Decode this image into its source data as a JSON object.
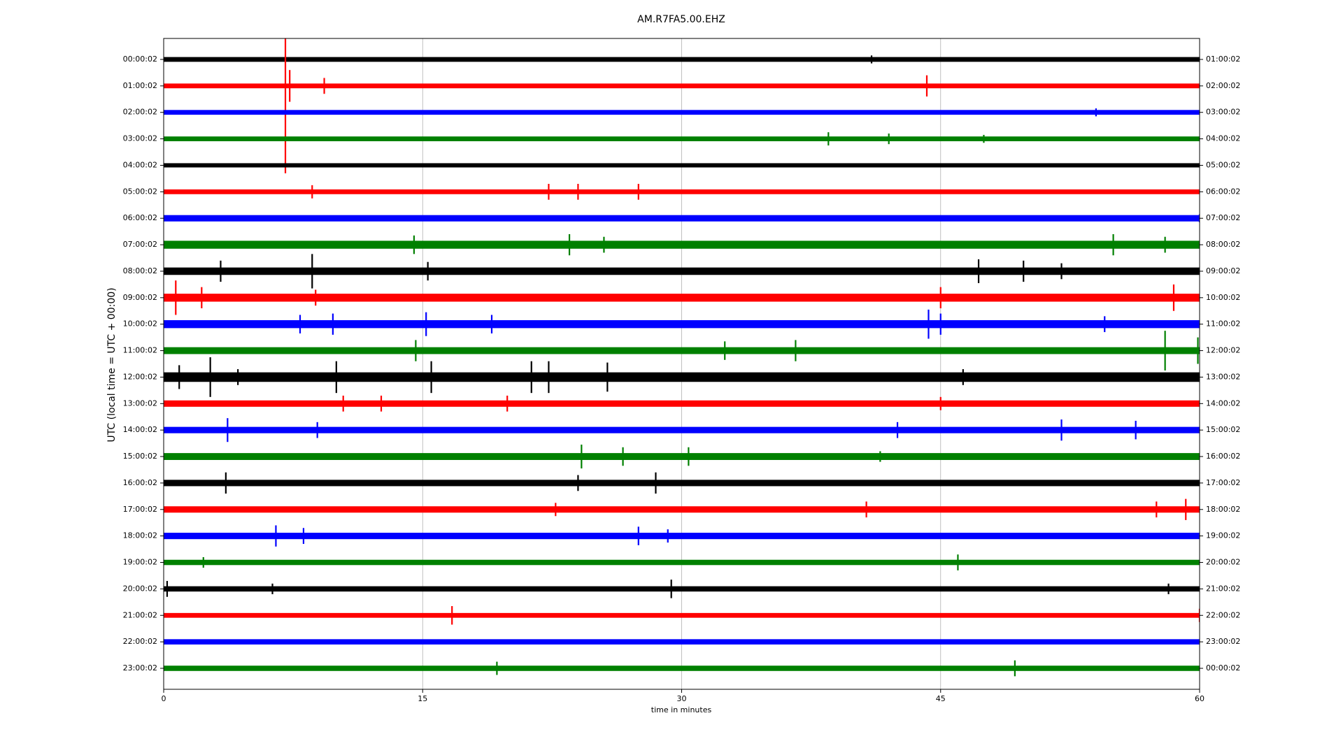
{
  "chart_data": {
    "type": "dayplot",
    "title": "AM.R7FA5.00.EHZ",
    "x_label": "time in minutes",
    "y_label": "UTC (local time = UTC + 00:00)",
    "xlim": [
      0,
      60
    ],
    "xticks": [
      0,
      15,
      30,
      45,
      60
    ],
    "grid": true,
    "rows": [
      {
        "label": "00:00:02",
        "right_label": "01:00:02",
        "color": "#000000",
        "noise": 0.09,
        "events": {
          "x": [
            41
          ],
          "values": [
            0.15
          ]
        }
      },
      {
        "label": "01:00:02",
        "right_label": "02:00:02",
        "color": "#ff0000",
        "noise": 0.09,
        "events": {
          "x": [
            7.05,
            7.3,
            9.3,
            44.2
          ],
          "values": [
            3.3,
            0.6,
            0.3,
            0.4
          ]
        }
      },
      {
        "label": "02:00:02",
        "right_label": "03:00:02",
        "color": "#0000ff",
        "noise": 0.09,
        "events": {
          "x": [
            54
          ],
          "values": [
            0.15
          ]
        }
      },
      {
        "label": "03:00:02",
        "right_label": "04:00:02",
        "color": "#008000",
        "noise": 0.09,
        "events": {
          "x": [
            38.5,
            42,
            47.5
          ],
          "values": [
            0.25,
            0.2,
            0.15
          ]
        }
      },
      {
        "label": "04:00:02",
        "right_label": "05:00:02",
        "color": "#000000",
        "noise": 0.08,
        "events": {
          "x": [],
          "values": []
        }
      },
      {
        "label": "05:00:02",
        "right_label": "06:00:02",
        "color": "#ff0000",
        "noise": 0.09,
        "events": {
          "x": [
            8.6,
            22.3,
            24,
            27.5
          ],
          "values": [
            0.25,
            0.3,
            0.3,
            0.3
          ]
        }
      },
      {
        "label": "06:00:02",
        "right_label": "07:00:02",
        "color": "#0000ff",
        "noise": 0.12,
        "events": {
          "x": [
            60
          ],
          "values": [
            0.15
          ]
        }
      },
      {
        "label": "07:00:02",
        "right_label": "08:00:02",
        "color": "#008000",
        "noise": 0.15,
        "events": {
          "x": [
            14.5,
            23.5,
            25.5,
            55,
            58
          ],
          "values": [
            0.35,
            0.4,
            0.3,
            0.4,
            0.3
          ]
        }
      },
      {
        "label": "08:00:02",
        "right_label": "09:00:02",
        "color": "#000000",
        "noise": 0.14,
        "events": {
          "x": [
            3.3,
            8.6,
            15.3,
            47.2,
            49.8,
            52
          ],
          "values": [
            0.4,
            0.65,
            0.35,
            0.45,
            0.4,
            0.3
          ]
        }
      },
      {
        "label": "09:00:02",
        "right_label": "10:00:02",
        "color": "#ff0000",
        "noise": 0.15,
        "events": {
          "x": [
            0.7,
            2.2,
            8.8,
            45,
            58.5
          ],
          "values": [
            0.65,
            0.4,
            0.3,
            0.4,
            0.5
          ]
        }
      },
      {
        "label": "10:00:02",
        "right_label": "11:00:02",
        "color": "#0000ff",
        "noise": 0.15,
        "events": {
          "x": [
            7.9,
            9.8,
            15.2,
            19,
            44.3,
            45,
            54.5
          ],
          "values": [
            0.35,
            0.4,
            0.45,
            0.35,
            0.55,
            0.4,
            0.3
          ]
        }
      },
      {
        "label": "11:00:02",
        "right_label": "12:00:02",
        "color": "#008000",
        "noise": 0.13,
        "events": {
          "x": [
            14.6,
            32.5,
            36.6,
            58,
            59.9
          ],
          "values": [
            0.4,
            0.35,
            0.4,
            0.75,
            0.5
          ]
        }
      },
      {
        "label": "12:00:02",
        "right_label": "13:00:02",
        "color": "#000000",
        "noise": 0.18,
        "events": {
          "x": [
            0.9,
            2.7,
            4.3,
            10,
            15.5,
            21.3,
            22.3,
            25.7,
            46.3
          ],
          "values": [
            0.45,
            0.75,
            0.3,
            0.6,
            0.6,
            0.6,
            0.6,
            0.55,
            0.3
          ]
        }
      },
      {
        "label": "13:00:02",
        "right_label": "14:00:02",
        "color": "#ff0000",
        "noise": 0.12,
        "events": {
          "x": [
            10.4,
            12.6,
            19.9,
            45
          ],
          "values": [
            0.3,
            0.3,
            0.3,
            0.25
          ]
        }
      },
      {
        "label": "14:00:02",
        "right_label": "15:00:02",
        "color": "#0000ff",
        "noise": 0.12,
        "events": {
          "x": [
            3.7,
            8.9,
            42.5,
            52,
            56.3
          ],
          "values": [
            0.45,
            0.3,
            0.3,
            0.4,
            0.35
          ]
        }
      },
      {
        "label": "15:00:02",
        "right_label": "16:00:02",
        "color": "#008000",
        "noise": 0.13,
        "events": {
          "x": [
            24.2,
            26.6,
            30.4,
            41.5
          ],
          "values": [
            0.45,
            0.35,
            0.35,
            0.2
          ]
        }
      },
      {
        "label": "16:00:02",
        "right_label": "17:00:02",
        "color": "#000000",
        "noise": 0.12,
        "events": {
          "x": [
            3.6,
            24,
            28.5
          ],
          "values": [
            0.4,
            0.3,
            0.4
          ]
        }
      },
      {
        "label": "17:00:02",
        "right_label": "18:00:02",
        "color": "#ff0000",
        "noise": 0.12,
        "events": {
          "x": [
            22.7,
            40.7,
            57.5,
            59.2
          ],
          "values": [
            0.25,
            0.3,
            0.3,
            0.4
          ]
        }
      },
      {
        "label": "18:00:02",
        "right_label": "19:00:02",
        "color": "#0000ff",
        "noise": 0.12,
        "events": {
          "x": [
            6.5,
            8.1,
            27.5,
            29.2
          ],
          "values": [
            0.4,
            0.3,
            0.35,
            0.25
          ]
        }
      },
      {
        "label": "19:00:02",
        "right_label": "20:00:02",
        "color": "#008000",
        "noise": 0.1,
        "events": {
          "x": [
            2.3,
            46
          ],
          "values": [
            0.2,
            0.3
          ]
        }
      },
      {
        "label": "20:00:02",
        "right_label": "21:00:02",
        "color": "#000000",
        "noise": 0.1,
        "events": {
          "x": [
            0.2,
            6.3,
            29.4,
            58.2
          ],
          "values": [
            0.3,
            0.2,
            0.35,
            0.2
          ]
        }
      },
      {
        "label": "21:00:02",
        "right_label": "22:00:02",
        "color": "#ff0000",
        "noise": 0.09,
        "events": {
          "x": [
            16.7,
            60
          ],
          "values": [
            0.35,
            0.25
          ]
        }
      },
      {
        "label": "22:00:02",
        "right_label": "23:00:02",
        "color": "#0000ff",
        "noise": 0.1,
        "events": {
          "x": [],
          "values": []
        }
      },
      {
        "label": "23:00:02",
        "right_label": "00:00:02",
        "color": "#008000",
        "noise": 0.1,
        "events": {
          "x": [
            19.3,
            49.3
          ],
          "values": [
            0.25,
            0.3
          ]
        }
      }
    ]
  }
}
